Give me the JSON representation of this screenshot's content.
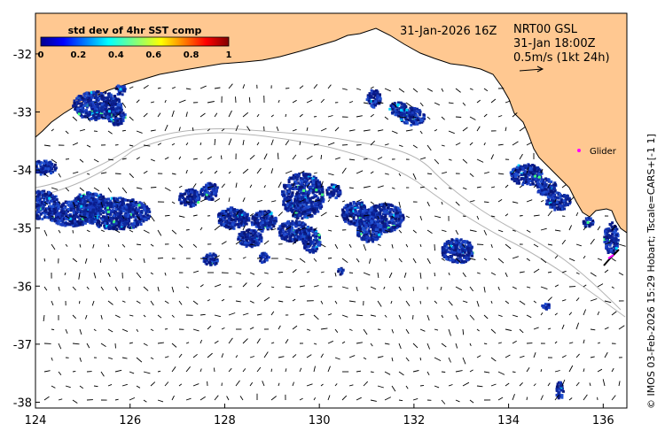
{
  "title": "",
  "colorbar": {
    "title": "std dev of 4hr SST comp",
    "ticks": [
      "0",
      "0.2",
      "0.4",
      "0.6",
      "0.8",
      "1"
    ],
    "range": [
      0,
      1
    ]
  },
  "timestamp_main": "31-Jan-2026 16Z",
  "current_info": {
    "line1": "NRT00 GSL",
    "line2": "31-Jan 18:00Z",
    "line3": "0.5m/s (1kt 24h)"
  },
  "glider_label": "Glider",
  "side_credit": "© IMOS 03-Feb-2026 15:29 Hobart; Tscale=CARS+[-1 1]",
  "axes": {
    "x_ticks": [
      "124",
      "126",
      "128",
      "130",
      "132",
      "134",
      "136"
    ],
    "y_ticks": [
      "-32",
      "-33",
      "-34",
      "-35",
      "-36",
      "-37",
      "-38"
    ],
    "xlim": [
      124,
      136.5
    ],
    "ylim": [
      -38.1,
      -31.3
    ]
  },
  "colors": {
    "land": "#ffc891",
    "data_low": "#0a1a8c",
    "glider": "#ff00ff",
    "isobath": "#b4b4b4"
  }
}
